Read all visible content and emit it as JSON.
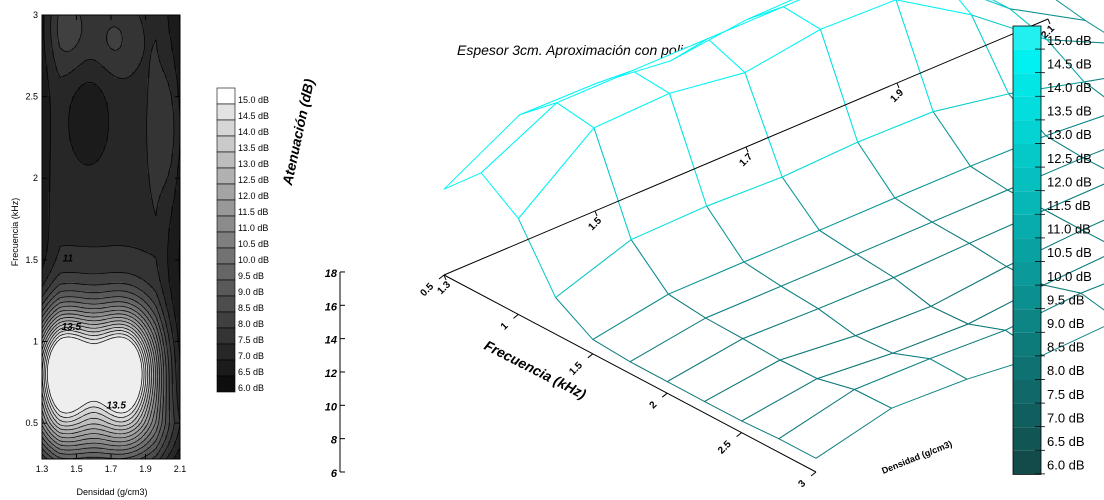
{
  "chart_data": [
    {
      "type": "contour",
      "xlabel": "Densidad (g/cm3)",
      "ylabel": "Frecuencia (kHz)",
      "x_ticks": [
        "1.3",
        "1.5",
        "1.7",
        "1.9",
        "2.1"
      ],
      "x_tick_values": [
        1.3,
        1.5,
        1.7,
        1.9,
        2.1
      ],
      "y_ticks": [
        "0.5",
        "1",
        "1.5",
        "2",
        "2.5",
        "3"
      ],
      "y_tick_values": [
        0.5,
        1,
        1.5,
        2,
        2.5,
        3
      ],
      "xlim": [
        1.3,
        2.1
      ],
      "ylim": [
        0.28,
        3
      ],
      "contour_labels": [
        {
          "text": "11",
          "x": 1.45,
          "y": 1.49
        },
        {
          "text": "13.5",
          "x": 1.47,
          "y": 1.07
        },
        {
          "text": "13.5",
          "x": 1.73,
          "y": 0.59
        }
      ],
      "legend_levels": [
        "15.0 dB",
        "14.5 dB",
        "14.0 dB",
        "13.5 dB",
        "13.0 dB",
        "12.5 dB",
        "12.0 dB",
        "11.5 dB",
        "11.0 dB",
        "10.5 dB",
        "10.0 dB",
        "9.5 dB",
        "9.0 dB",
        "8.5 dB",
        "8.0 dB",
        "7.5 dB",
        "7.0 dB",
        "6.5 dB",
        "6.0 dB"
      ],
      "colormap": "grayscale"
    },
    {
      "type": "surface",
      "title": "Espesor 3cm. Aproximación con polinomio de 4º grado",
      "xlabel": "Densidad (g/cm3)",
      "ylabel": "Frecuencia (kHz)",
      "zlabel": "Atenuación (dB)",
      "density_ticks": [
        "1.3",
        "1.5",
        "1.7",
        "1.9",
        "2.1"
      ],
      "density_tick_values": [
        1.3,
        1.5,
        1.7,
        1.9,
        2.1
      ],
      "freq_ticks": [
        "0.5",
        "1",
        "1.5",
        "2",
        "2.5",
        "3"
      ],
      "freq_tick_values": [
        0.5,
        1,
        1.5,
        2,
        2.5,
        3
      ],
      "z_ticks": [
        "6",
        "8",
        "10",
        "12",
        "14",
        "16",
        "18"
      ],
      "z_tick_values": [
        6,
        8,
        10,
        12,
        14,
        16,
        18
      ],
      "zlim": [
        6,
        18
      ],
      "legend_levels": [
        "15.0 dB",
        "14.5 dB",
        "14.0 dB",
        "13.5 dB",
        "13.0 dB",
        "12.5 dB",
        "12.0 dB",
        "11.5 dB",
        "11.0 dB",
        "10.5 dB",
        "10.0 dB",
        "9.5 dB",
        "9.0 dB",
        "8.5 dB",
        "8.0 dB",
        "7.5 dB",
        "7.0 dB",
        "6.5 dB",
        "6.0 dB"
      ],
      "colormap": "cyan",
      "grid": true
    }
  ]
}
